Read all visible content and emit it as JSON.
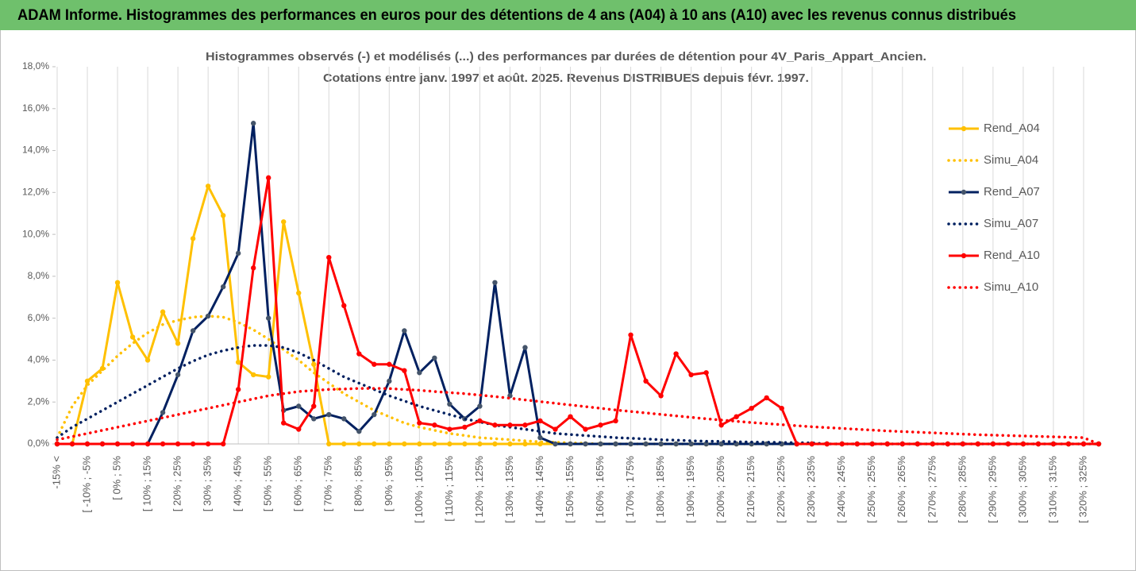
{
  "chart_data": {
    "type": "line",
    "title": "ADAM Informe. Histogrammes des performances en euros pour des détentions de 4 ans (A04) à 10 ans (A10) avec les revenus connus distribués",
    "subtitle": [
      "Histogrammes observés (-) et modélisés (...) des performances par durées de détention pour 4V_Paris_Appart_Ancien.",
      "Cotations entre janv. 1997 et août. 2025. Revenus DISTRIBUES depuis févr. 1997."
    ],
    "categories": [
      "-15% <",
      null,
      "[ -10% ; -5%",
      null,
      "[ 0% ; 5%",
      null,
      "[ 10% ; 15%",
      null,
      "[ 20% ; 25%",
      null,
      "[ 30% ; 35%",
      null,
      "[ 40% ; 45%",
      null,
      "[ 50% ; 55%",
      null,
      "[ 60% ; 65%",
      null,
      "[ 70% ; 75%",
      null,
      "[ 80% ; 85%",
      null,
      "[ 90% ; 95%",
      null,
      "[ 100% ; 105%",
      null,
      "[ 110% ; 115%",
      null,
      "[ 120% ; 125%",
      null,
      "[ 130% ; 135%",
      null,
      "[ 140% ; 145%",
      null,
      "[ 150% ; 155%",
      null,
      "[ 160% ; 165%",
      null,
      "[ 170% ; 175%",
      null,
      "[ 180% ; 185%",
      null,
      "[ 190% ; 195%",
      null,
      "[ 200% ; 205%",
      null,
      "[ 210% ; 215%",
      null,
      "[ 220% ; 225%",
      null,
      "[ 230% ; 235%",
      null,
      "[ 240% ; 245%",
      null,
      "[ 250% ; 255%",
      null,
      "[ 260% ; 265%",
      null,
      "[ 270% ; 275%",
      null,
      "[ 280% ; 285%",
      null,
      "[ 290% ; 295%",
      null,
      "[ 300% ; 305%",
      null,
      "[ 310% ; 315%",
      null,
      "[ 320% ; 325%",
      null
    ],
    "series": [
      {
        "name": "Rend_A04",
        "color": "#ffc000",
        "dash": "solid",
        "markers": true,
        "values": [
          0,
          0,
          3.0,
          3.6,
          7.7,
          5.1,
          4.0,
          6.3,
          4.8,
          9.8,
          12.3,
          10.9,
          3.9,
          3.3,
          3.2,
          10.6,
          7.2,
          3.8,
          0,
          0,
          0,
          0,
          0,
          0,
          0,
          0,
          0,
          0,
          0,
          0,
          0,
          0,
          0,
          0,
          0,
          0,
          0,
          0,
          0,
          0,
          0,
          0,
          0,
          0,
          0,
          0,
          0,
          0,
          0,
          0,
          0,
          0,
          0,
          0,
          0,
          0,
          0,
          0,
          0,
          0,
          0,
          0,
          0,
          0,
          0,
          0,
          0,
          0,
          0,
          0
        ]
      },
      {
        "name": "Simu_A04",
        "color": "#ffc000",
        "dash": "dotted",
        "markers": false,
        "values": [
          0.3,
          1.8,
          2.8,
          3.5,
          4.2,
          4.8,
          5.3,
          5.7,
          5.9,
          6.05,
          6.1,
          6.05,
          5.8,
          5.45,
          5.0,
          4.5,
          4.0,
          3.4,
          2.9,
          2.4,
          2.0,
          1.6,
          1.3,
          1.0,
          0.8,
          0.65,
          0.5,
          0.4,
          0.3,
          0.25,
          0.2,
          0.15,
          0.1,
          0.08,
          0.05,
          0.03,
          0,
          0,
          0,
          0,
          0,
          0,
          0,
          0,
          0,
          0,
          0,
          0,
          0,
          0,
          0,
          0,
          0,
          0,
          0,
          0,
          0,
          0,
          0,
          0,
          0,
          0,
          0,
          0,
          0,
          0,
          0,
          0,
          0,
          0
        ]
      },
      {
        "name": "Rend_A07",
        "color": "#002060",
        "dash": "solid",
        "markers": true,
        "values": [
          0,
          0,
          0,
          0,
          0,
          0,
          0,
          1.5,
          3.3,
          5.4,
          6.1,
          7.5,
          9.1,
          15.3,
          6.0,
          1.6,
          1.8,
          1.2,
          1.4,
          1.2,
          0.6,
          1.4,
          3.0,
          5.4,
          3.4,
          4.1,
          1.9,
          1.2,
          1.8,
          7.7,
          2.3,
          4.6,
          0.3,
          0,
          0,
          0,
          0,
          0,
          0,
          0,
          0,
          0,
          0,
          0,
          0,
          0,
          0,
          0,
          0,
          0,
          0,
          0,
          0,
          0,
          0,
          0,
          0,
          0,
          0,
          0,
          0,
          0,
          0,
          0,
          0,
          0,
          0,
          0,
          0,
          0
        ]
      },
      {
        "name": "Simu_A07",
        "color": "#002060",
        "dash": "dotted",
        "markers": false,
        "values": [
          0.3,
          0.8,
          1.2,
          1.6,
          2.0,
          2.4,
          2.8,
          3.2,
          3.6,
          3.95,
          4.25,
          4.45,
          4.6,
          4.7,
          4.7,
          4.6,
          4.35,
          4.0,
          3.6,
          3.2,
          2.9,
          2.6,
          2.3,
          2.05,
          1.8,
          1.6,
          1.4,
          1.2,
          1.05,
          0.9,
          0.8,
          0.7,
          0.6,
          0.5,
          0.45,
          0.4,
          0.35,
          0.3,
          0.27,
          0.24,
          0.2,
          0.18,
          0.15,
          0.13,
          0.12,
          0.1,
          0.09,
          0.08,
          0.07,
          0.06,
          0.05,
          0,
          0,
          0,
          0,
          0,
          0,
          0,
          0,
          0,
          0,
          0,
          0,
          0,
          0,
          0,
          0,
          0,
          0,
          0
        ]
      },
      {
        "name": "Rend_A10",
        "color": "#ff0000",
        "dash": "solid",
        "markers": true,
        "values": [
          0,
          0,
          0,
          0,
          0,
          0,
          0,
          0,
          0,
          0,
          0,
          0,
          2.6,
          8.4,
          12.7,
          1.0,
          0.7,
          1.8,
          8.9,
          6.6,
          4.3,
          3.8,
          3.8,
          3.5,
          1.0,
          0.9,
          0.7,
          0.8,
          1.1,
          0.9,
          0.9,
          0.9,
          1.1,
          0.7,
          1.3,
          0.7,
          0.9,
          1.1,
          5.2,
          3.0,
          2.3,
          4.3,
          3.3,
          3.4,
          0.9,
          1.3,
          1.7,
          2.2,
          1.7,
          0,
          0,
          0,
          0,
          0,
          0,
          0,
          0,
          0,
          0,
          0,
          0,
          0,
          0,
          0,
          0,
          0,
          0,
          0,
          0,
          0
        ]
      },
      {
        "name": "Simu_A10",
        "color": "#ff0000",
        "dash": "dotted",
        "markers": false,
        "values": [
          0.2,
          0.35,
          0.5,
          0.65,
          0.8,
          0.95,
          1.1,
          1.25,
          1.4,
          1.55,
          1.7,
          1.85,
          2.0,
          2.15,
          2.3,
          2.4,
          2.5,
          2.55,
          2.6,
          2.62,
          2.65,
          2.65,
          2.64,
          2.6,
          2.56,
          2.5,
          2.45,
          2.4,
          2.33,
          2.26,
          2.18,
          2.1,
          2.02,
          1.94,
          1.86,
          1.78,
          1.7,
          1.62,
          1.55,
          1.48,
          1.41,
          1.34,
          1.27,
          1.2,
          1.14,
          1.08,
          1.02,
          0.97,
          0.92,
          0.87,
          0.82,
          0.78,
          0.74,
          0.7,
          0.66,
          0.62,
          0.59,
          0.56,
          0.53,
          0.5,
          0.47,
          0.44,
          0.42,
          0.4,
          0.38,
          0.36,
          0.34,
          0.32,
          0.3,
          0
        ]
      }
    ],
    "ylim": [
      0,
      18
    ],
    "yticks": [
      {
        "value": 0,
        "label": "0,0%"
      },
      {
        "value": 2,
        "label": "2,0%"
      },
      {
        "value": 4,
        "label": "4,0%"
      },
      {
        "value": 6,
        "label": "6,0%"
      },
      {
        "value": 8,
        "label": "8,0%"
      },
      {
        "value": 10,
        "label": "10,0%"
      },
      {
        "value": 12,
        "label": "12,0%"
      },
      {
        "value": 14,
        "label": "14,0%"
      },
      {
        "value": 16,
        "label": "16,0%"
      },
      {
        "value": 18,
        "label": "18,0%"
      }
    ],
    "grid": "x",
    "legend": "right"
  }
}
